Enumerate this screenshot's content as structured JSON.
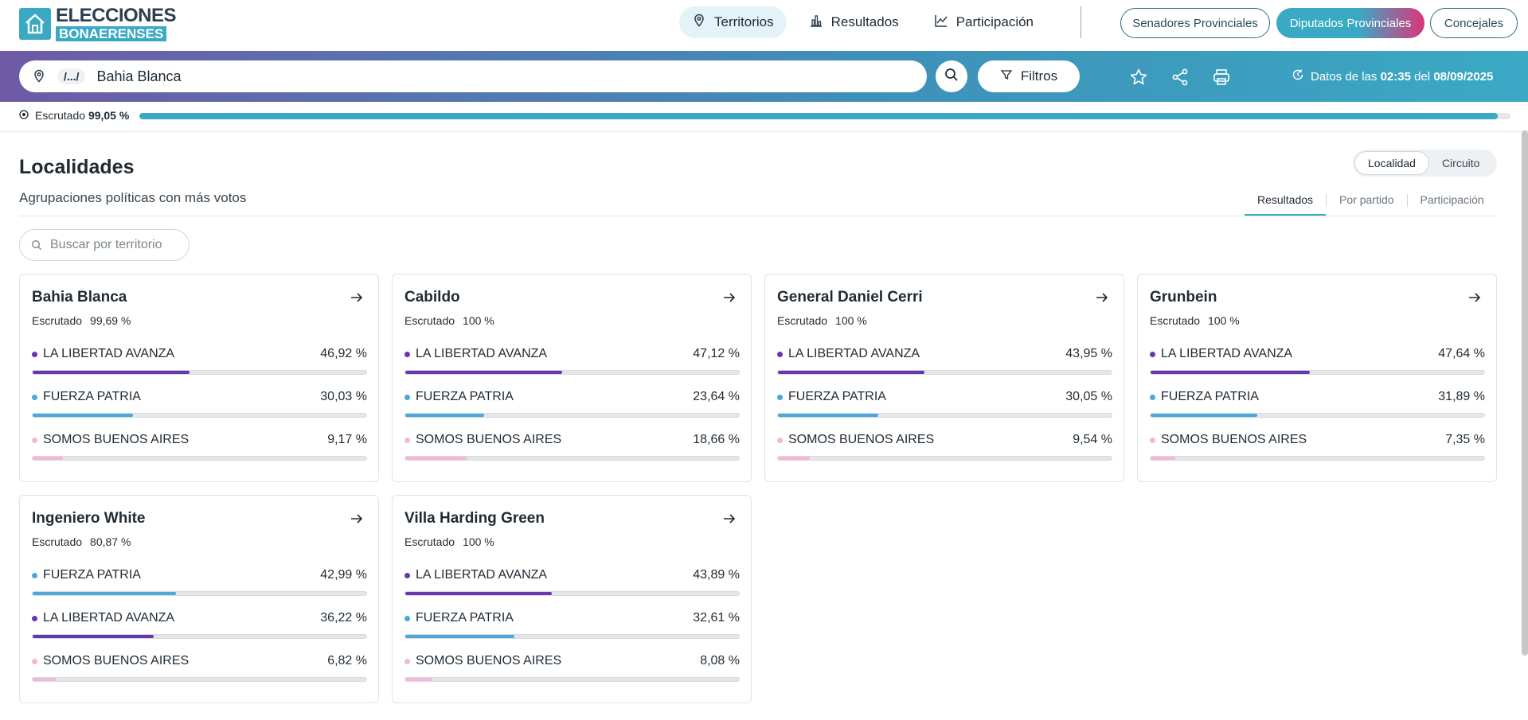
{
  "header": {
    "logo_line1": "ELECCIONES",
    "logo_line2": "BONAERENSES",
    "nav": [
      {
        "label": "Territorios",
        "icon": "location-user-icon"
      },
      {
        "label": "Resultados",
        "icon": "bar-chart-icon"
      },
      {
        "label": "Participación",
        "icon": "line-chart-icon"
      }
    ],
    "chambers": [
      "Senadores Provinciales",
      "Diputados Provinciales",
      "Concejales"
    ]
  },
  "search": {
    "crumb": "/.../",
    "value": "Bahia Blanca",
    "filters_label": "Filtros",
    "datos_prefix": "Datos de las",
    "datos_time": "02:35",
    "datos_mid": "del",
    "datos_date": "08/09/2025"
  },
  "escrutado": {
    "label": "Escrutado",
    "value": "99,05 %",
    "fraction": 0.9905
  },
  "main": {
    "title": "Localidades",
    "subtitle": "Agrupaciones políticas con más votos",
    "toggle": [
      "Localidad",
      "Circuito"
    ],
    "tabs": [
      "Resultados",
      "Por partido",
      "Participación"
    ],
    "filter_placeholder": "Buscar por territorio"
  },
  "colors": {
    "LA LIBERTAD AVANZA": "#6a35b0",
    "FUERZA PATRIA": "#4aa8dc",
    "SOMOS BUENOS AIRES": "#f3b7d7"
  },
  "cards": [
    {
      "name": "Bahia Blanca",
      "esc_label": "Escrutado",
      "esc": "99,69 %",
      "parties": [
        {
          "name": "LA LIBERTAD AVANZA",
          "pct": "46,92 %",
          "value": 46.92
        },
        {
          "name": "FUERZA PATRIA",
          "pct": "30,03 %",
          "value": 30.03
        },
        {
          "name": "SOMOS BUENOS AIRES",
          "pct": "9,17 %",
          "value": 9.17
        }
      ]
    },
    {
      "name": "Cabildo",
      "esc_label": "Escrutado",
      "esc": "100 %",
      "parties": [
        {
          "name": "LA LIBERTAD AVANZA",
          "pct": "47,12 %",
          "value": 47.12
        },
        {
          "name": "FUERZA PATRIA",
          "pct": "23,64 %",
          "value": 23.64
        },
        {
          "name": "SOMOS BUENOS AIRES",
          "pct": "18,66 %",
          "value": 18.66
        }
      ]
    },
    {
      "name": "General Daniel Cerri",
      "esc_label": "Escrutado",
      "esc": "100 %",
      "parties": [
        {
          "name": "LA LIBERTAD AVANZA",
          "pct": "43,95 %",
          "value": 43.95
        },
        {
          "name": "FUERZA PATRIA",
          "pct": "30,05 %",
          "value": 30.05
        },
        {
          "name": "SOMOS BUENOS AIRES",
          "pct": "9,54 %",
          "value": 9.54
        }
      ]
    },
    {
      "name": "Grunbein",
      "esc_label": "Escrutado",
      "esc": "100 %",
      "parties": [
        {
          "name": "LA LIBERTAD AVANZA",
          "pct": "47,64 %",
          "value": 47.64
        },
        {
          "name": "FUERZA PATRIA",
          "pct": "31,89 %",
          "value": 31.89
        },
        {
          "name": "SOMOS BUENOS AIRES",
          "pct": "7,35 %",
          "value": 7.35
        }
      ]
    },
    {
      "name": "Ingeniero White",
      "esc_label": "Escrutado",
      "esc": "80,87 %",
      "parties": [
        {
          "name": "FUERZA PATRIA",
          "pct": "42,99 %",
          "value": 42.99
        },
        {
          "name": "LA LIBERTAD AVANZA",
          "pct": "36,22 %",
          "value": 36.22
        },
        {
          "name": "SOMOS BUENOS AIRES",
          "pct": "6,82 %",
          "value": 6.82
        }
      ]
    },
    {
      "name": "Villa Harding Green",
      "esc_label": "Escrutado",
      "esc": "100 %",
      "parties": [
        {
          "name": "LA LIBERTAD AVANZA",
          "pct": "43,89 %",
          "value": 43.89
        },
        {
          "name": "FUERZA PATRIA",
          "pct": "32,61 %",
          "value": 32.61
        },
        {
          "name": "SOMOS BUENOS AIRES",
          "pct": "8,08 %",
          "value": 8.08
        }
      ]
    }
  ]
}
